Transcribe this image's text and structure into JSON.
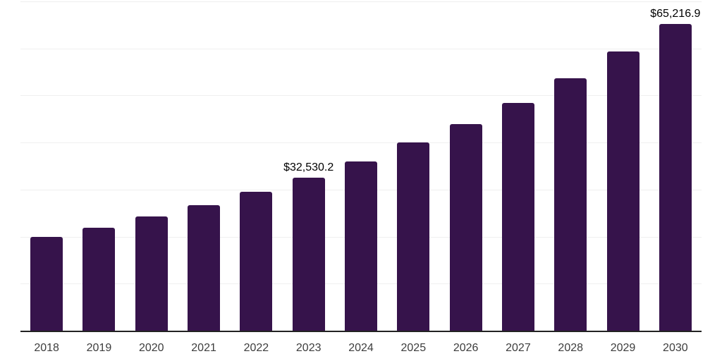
{
  "chart_data": {
    "type": "bar",
    "title": "",
    "xlabel": "",
    "ylabel": "",
    "categories": [
      "2018",
      "2019",
      "2020",
      "2021",
      "2022",
      "2023",
      "2024",
      "2025",
      "2026",
      "2027",
      "2028",
      "2029",
      "2030"
    ],
    "values": [
      20000,
      21950,
      24350,
      26700,
      29600,
      32530.2,
      35900,
      39950,
      43850,
      48350,
      53600,
      59300,
      65216.9
    ],
    "data_labels": [
      {
        "index": 5,
        "text": "$32,530.2"
      },
      {
        "index": 12,
        "text": "$65,216.9"
      }
    ],
    "ylim": [
      0,
      70000
    ],
    "grid_step": 10000,
    "grid": true,
    "legend_position": "none",
    "y_axis_tick_labels_visible": false,
    "bar_color": "#36134B",
    "gridline_color": "#EFEFEF",
    "axis_line_color": "#222222",
    "x_label_color": "#3D3D3D",
    "data_label_color": "#000000",
    "background_color": "#FFFFFF"
  }
}
